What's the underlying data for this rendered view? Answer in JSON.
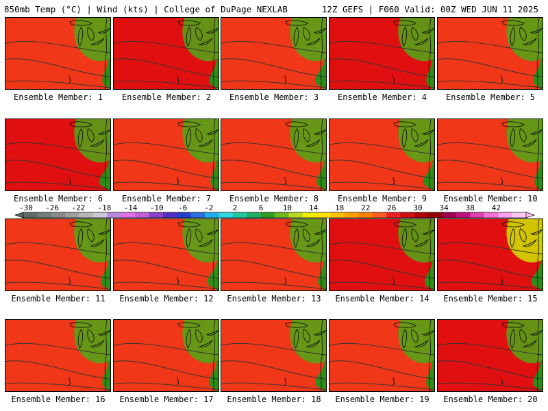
{
  "header": {
    "left": "850mb Temp (°C) | Wind (kts) | College of DuPage NEXLAB",
    "right": "12Z GEFS | F060 Valid: 00Z WED JUN 11 2025"
  },
  "colorbar": {
    "labels": [
      "-30",
      "-26",
      "-22",
      "-18",
      "-14",
      "-10",
      "-6",
      "-2",
      "2",
      "6",
      "10",
      "14",
      "18",
      "22",
      "26",
      "30",
      "34",
      "38",
      "42"
    ],
    "colors": [
      "#5c6e62",
      "#707e74",
      "#8a8a8a",
      "#9f9f9f",
      "#b8b8b8",
      "#c9c9d6",
      "#b88ae0",
      "#e070e6",
      "#c060d8",
      "#8a40c8",
      "#5030c0",
      "#2040d0",
      "#2a70e0",
      "#20b0f0",
      "#30d8e0",
      "#20c8a0",
      "#20b060",
      "#30a020",
      "#70b820",
      "#b8d820",
      "#f0f000",
      "#ffe000",
      "#ffc000",
      "#ffa000",
      "#ff8000",
      "#ff5a20",
      "#f02020",
      "#d01010",
      "#b00000",
      "#900000",
      "#a00050",
      "#c01080",
      "#e040b0",
      "#ff70d8",
      "#ffa0ec",
      "#ffc8f4"
    ]
  },
  "members": [
    {
      "label": "Ensemble Member: 1",
      "warmth": 0.35
    },
    {
      "label": "Ensemble Member: 2",
      "warmth": 0.55
    },
    {
      "label": "Ensemble Member: 3",
      "warmth": 0.25
    },
    {
      "label": "Ensemble Member: 4",
      "warmth": 0.55
    },
    {
      "label": "Ensemble Member: 5",
      "warmth": 0.3
    },
    {
      "label": "Ensemble Member: 6",
      "warmth": 0.6
    },
    {
      "label": "Ensemble Member: 7",
      "warmth": 0.2
    },
    {
      "label": "Ensemble Member: 8",
      "warmth": 0.3
    },
    {
      "label": "Ensemble Member: 9",
      "warmth": 0.35
    },
    {
      "label": "Ensemble Member: 10",
      "warmth": 0.35
    },
    {
      "label": "Ensemble Member: 11",
      "warmth": 0.3
    },
    {
      "label": "Ensemble Member: 12",
      "warmth": 0.3
    },
    {
      "label": "Ensemble Member: 13",
      "warmth": 0.25
    },
    {
      "label": "Ensemble Member: 14",
      "warmth": 0.6
    },
    {
      "label": "Ensemble Member: 15",
      "warmth": 0.8
    },
    {
      "label": "Ensemble Member: 16",
      "warmth": 0.35
    },
    {
      "label": "Ensemble Member: 17",
      "warmth": 0.3
    },
    {
      "label": "Ensemble Member: 18",
      "warmth": 0.35
    },
    {
      "label": "Ensemble Member: 19",
      "warmth": 0.4
    },
    {
      "label": "Ensemble Member: 20",
      "warmth": 0.65
    }
  ]
}
